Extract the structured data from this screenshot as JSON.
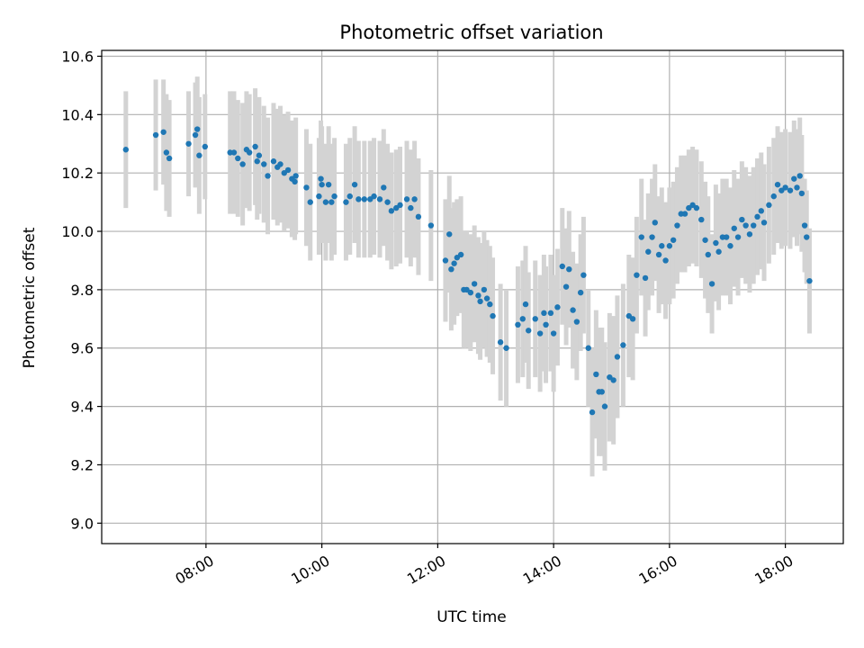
{
  "chart_data": {
    "type": "scatter",
    "title": "Photometric offset variation",
    "xlabel": "UTC time",
    "ylabel": "Photometric offset",
    "x_tick_labels": [
      "08:00",
      "10:00",
      "12:00",
      "14:00",
      "16:00",
      "18:00"
    ],
    "x_ticks_hours": [
      8,
      10,
      12,
      14,
      16,
      18
    ],
    "xlim_hours": [
      6.2,
      19.0
    ],
    "y_tick_labels": [
      "9.0",
      "9.2",
      "9.4",
      "9.6",
      "9.8",
      "10.0",
      "10.2",
      "10.4",
      "10.6"
    ],
    "y_ticks": [
      9.0,
      9.2,
      9.4,
      9.6,
      9.8,
      10.0,
      10.2,
      10.4,
      10.6
    ],
    "ylim": [
      8.93,
      10.62
    ],
    "grid": true,
    "marker_color": "#1f77b4",
    "errorbar_color": "#d3d3d3",
    "series": [
      {
        "points": [
          [
            "06:37",
            10.28,
            0.2
          ],
          [
            "07:08",
            10.33,
            0.19
          ],
          [
            "07:16",
            10.34,
            0.18
          ],
          [
            "07:19",
            10.27,
            0.2
          ],
          [
            "07:22",
            10.25,
            0.2
          ],
          [
            "07:42",
            10.3,
            0.18
          ],
          [
            "07:49",
            10.33,
            0.18
          ],
          [
            "07:51",
            10.35,
            0.18
          ],
          [
            "07:53",
            10.26,
            0.2
          ],
          [
            "07:59",
            10.29,
            0.18
          ],
          [
            "08:25",
            10.27,
            0.21
          ],
          [
            "08:29",
            10.27,
            0.21
          ],
          [
            "08:33",
            10.25,
            0.2
          ],
          [
            "08:38",
            10.23,
            0.21
          ],
          [
            "08:42",
            10.28,
            0.2
          ],
          [
            "08:45",
            10.27,
            0.2
          ],
          [
            "08:51",
            10.29,
            0.2
          ],
          [
            "08:53",
            10.24,
            0.2
          ],
          [
            "08:55",
            10.26,
            0.2
          ],
          [
            "09:00",
            10.23,
            0.2
          ],
          [
            "09:04",
            10.19,
            0.2
          ],
          [
            "09:10",
            10.24,
            0.2
          ],
          [
            "09:14",
            10.22,
            0.2
          ],
          [
            "09:17",
            10.23,
            0.2
          ],
          [
            "09:21",
            10.2,
            0.2
          ],
          [
            "09:25",
            10.21,
            0.2
          ],
          [
            "09:29",
            10.18,
            0.2
          ],
          [
            "09:32",
            10.17,
            0.2
          ],
          [
            "09:33",
            10.19,
            0.2
          ],
          [
            "09:44",
            10.15,
            0.2
          ],
          [
            "09:48",
            10.1,
            0.2
          ],
          [
            "09:57",
            10.12,
            0.2
          ],
          [
            "09:59",
            10.18,
            0.2
          ],
          [
            "10:00",
            10.16,
            0.2
          ],
          [
            "10:04",
            10.1,
            0.2
          ],
          [
            "10:07",
            10.16,
            0.2
          ],
          [
            "10:10",
            10.1,
            0.2
          ],
          [
            "10:13",
            10.12,
            0.2
          ],
          [
            "10:25",
            10.1,
            0.2
          ],
          [
            "10:29",
            10.12,
            0.2
          ],
          [
            "10:34",
            10.16,
            0.2
          ],
          [
            "10:38",
            10.11,
            0.2
          ],
          [
            "10:44",
            10.11,
            0.2
          ],
          [
            "10:50",
            10.11,
            0.2
          ],
          [
            "10:54",
            10.12,
            0.2
          ],
          [
            "11:00",
            10.11,
            0.2
          ],
          [
            "11:04",
            10.15,
            0.2
          ],
          [
            "11:08",
            10.1,
            0.2
          ],
          [
            "11:12",
            10.07,
            0.2
          ],
          [
            "11:17",
            10.08,
            0.2
          ],
          [
            "11:21",
            10.09,
            0.2
          ],
          [
            "11:28",
            10.11,
            0.2
          ],
          [
            "11:32",
            10.08,
            0.2
          ],
          [
            "11:36",
            10.11,
            0.2
          ],
          [
            "11:40",
            10.05,
            0.2
          ],
          [
            "11:53",
            10.02,
            0.19
          ],
          [
            "12:08",
            9.9,
            0.21
          ],
          [
            "12:12",
            9.99,
            0.2
          ],
          [
            "12:14",
            9.87,
            0.21
          ],
          [
            "12:17",
            9.89,
            0.21
          ],
          [
            "12:20",
            9.91,
            0.2
          ],
          [
            "12:24",
            9.92,
            0.2
          ],
          [
            "12:27",
            9.8,
            0.2
          ],
          [
            "12:30",
            9.8,
            0.2
          ],
          [
            "12:34",
            9.79,
            0.2
          ],
          [
            "12:38",
            9.82,
            0.2
          ],
          [
            "12:42",
            9.78,
            0.2
          ],
          [
            "12:44",
            9.76,
            0.2
          ],
          [
            "12:48",
            9.8,
            0.2
          ],
          [
            "12:51",
            9.77,
            0.2
          ],
          [
            "12:54",
            9.75,
            0.2
          ],
          [
            "12:57",
            9.71,
            0.2
          ],
          [
            "13:05",
            9.62,
            0.2
          ],
          [
            "13:11",
            9.6,
            0.2
          ],
          [
            "13:23",
            9.68,
            0.2
          ],
          [
            "13:28",
            9.7,
            0.2
          ],
          [
            "13:31",
            9.75,
            0.2
          ],
          [
            "13:34",
            9.66,
            0.2
          ],
          [
            "13:41",
            9.7,
            0.2
          ],
          [
            "13:46",
            9.65,
            0.2
          ],
          [
            "13:50",
            9.72,
            0.2
          ],
          [
            "13:52",
            9.68,
            0.2
          ],
          [
            "13:57",
            9.72,
            0.2
          ],
          [
            "14:00",
            9.65,
            0.2
          ],
          [
            "14:04",
            9.74,
            0.2
          ],
          [
            "14:09",
            9.88,
            0.2
          ],
          [
            "14:13",
            9.81,
            0.2
          ],
          [
            "14:16",
            9.87,
            0.2
          ],
          [
            "14:20",
            9.73,
            0.2
          ],
          [
            "14:24",
            9.69,
            0.2
          ],
          [
            "14:28",
            9.79,
            0.2
          ],
          [
            "14:31",
            9.85,
            0.2
          ],
          [
            "14:36",
            9.6,
            0.2
          ],
          [
            "14:40",
            9.38,
            0.22
          ],
          [
            "14:44",
            9.51,
            0.22
          ],
          [
            "14:47",
            9.45,
            0.22
          ],
          [
            "14:50",
            9.45,
            0.22
          ],
          [
            "14:53",
            9.4,
            0.22
          ],
          [
            "14:58",
            9.5,
            0.22
          ],
          [
            "15:02",
            9.49,
            0.22
          ],
          [
            "15:06",
            9.57,
            0.21
          ],
          [
            "15:12",
            9.61,
            0.21
          ],
          [
            "15:18",
            9.71,
            0.21
          ],
          [
            "15:22",
            9.7,
            0.21
          ],
          [
            "15:26",
            9.85,
            0.2
          ],
          [
            "15:31",
            9.98,
            0.2
          ],
          [
            "15:35",
            9.84,
            0.2
          ],
          [
            "15:38",
            9.93,
            0.2
          ],
          [
            "15:42",
            9.98,
            0.2
          ],
          [
            "15:45",
            10.03,
            0.2
          ],
          [
            "15:49",
            9.92,
            0.2
          ],
          [
            "15:52",
            9.95,
            0.2
          ],
          [
            "15:56",
            9.9,
            0.2
          ],
          [
            "16:00",
            9.95,
            0.2
          ],
          [
            "16:04",
            9.97,
            0.2
          ],
          [
            "16:08",
            10.02,
            0.2
          ],
          [
            "16:12",
            10.06,
            0.2
          ],
          [
            "16:16",
            10.06,
            0.2
          ],
          [
            "16:20",
            10.08,
            0.2
          ],
          [
            "16:24",
            10.09,
            0.2
          ],
          [
            "16:28",
            10.08,
            0.2
          ],
          [
            "16:33",
            10.04,
            0.2
          ],
          [
            "16:37",
            9.97,
            0.2
          ],
          [
            "16:40",
            9.92,
            0.2
          ],
          [
            "16:44",
            9.82,
            0.17
          ],
          [
            "16:48",
            9.96,
            0.2
          ],
          [
            "16:51",
            9.93,
            0.2
          ],
          [
            "16:55",
            9.98,
            0.2
          ],
          [
            "16:59",
            9.98,
            0.2
          ],
          [
            "17:03",
            9.95,
            0.2
          ],
          [
            "17:07",
            10.01,
            0.2
          ],
          [
            "17:11",
            9.98,
            0.2
          ],
          [
            "17:15",
            10.04,
            0.2
          ],
          [
            "17:19",
            10.02,
            0.2
          ],
          [
            "17:23",
            9.99,
            0.2
          ],
          [
            "17:27",
            10.02,
            0.2
          ],
          [
            "17:31",
            10.05,
            0.2
          ],
          [
            "17:35",
            10.07,
            0.2
          ],
          [
            "17:38",
            10.03,
            0.2
          ],
          [
            "17:43",
            10.09,
            0.2
          ],
          [
            "17:48",
            10.12,
            0.2
          ],
          [
            "17:52",
            10.16,
            0.2
          ],
          [
            "17:56",
            10.14,
            0.2
          ],
          [
            "18:00",
            10.15,
            0.2
          ],
          [
            "18:05",
            10.14,
            0.2
          ],
          [
            "18:09",
            10.18,
            0.2
          ],
          [
            "18:12",
            10.15,
            0.2
          ],
          [
            "18:15",
            10.19,
            0.2
          ],
          [
            "18:17",
            10.13,
            0.2
          ],
          [
            "18:20",
            10.02,
            0.16
          ],
          [
            "18:22",
            9.98,
            0.16
          ],
          [
            "18:25",
            9.83,
            0.18
          ]
        ]
      }
    ]
  }
}
